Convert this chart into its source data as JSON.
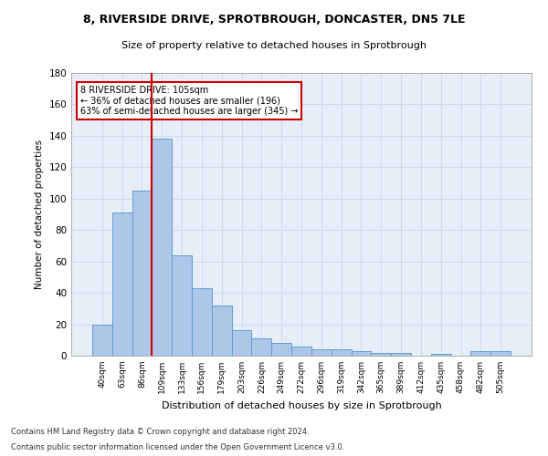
{
  "title_line1": "8, RIVERSIDE DRIVE, SPROTBROUGH, DONCASTER, DN5 7LE",
  "title_line2": "Size of property relative to detached houses in Sprotbrough",
  "xlabel": "Distribution of detached houses by size in Sprotbrough",
  "ylabel": "Number of detached properties",
  "categories": [
    "40sqm",
    "63sqm",
    "86sqm",
    "109sqm",
    "133sqm",
    "156sqm",
    "179sqm",
    "203sqm",
    "226sqm",
    "249sqm",
    "272sqm",
    "296sqm",
    "319sqm",
    "342sqm",
    "365sqm",
    "389sqm",
    "412sqm",
    "435sqm",
    "458sqm",
    "482sqm",
    "505sqm"
  ],
  "values": [
    20,
    91,
    105,
    138,
    64,
    43,
    32,
    16,
    11,
    8,
    6,
    4,
    4,
    3,
    2,
    2,
    0,
    1,
    0,
    3,
    3
  ],
  "bar_color": "#aec6e8",
  "bar_edge_color": "#5a9fd4",
  "vline_x": 2.5,
  "vline_color": "#cc0000",
  "annotation_text": "8 RIVERSIDE DRIVE: 105sqm\n← 36% of detached houses are smaller (196)\n63% of semi-detached houses are larger (345) →",
  "annotation_box_color": "#ffffff",
  "annotation_box_edge": "#cc0000",
  "ylim": [
    0,
    180
  ],
  "yticks": [
    0,
    20,
    40,
    60,
    80,
    100,
    120,
    140,
    160,
    180
  ],
  "grid_color": "#d0d8e8",
  "bg_color": "#e8eef8",
  "footer_line1": "Contains HM Land Registry data © Crown copyright and database right 2024.",
  "footer_line2": "Contains public sector information licensed under the Open Government Licence v3.0."
}
